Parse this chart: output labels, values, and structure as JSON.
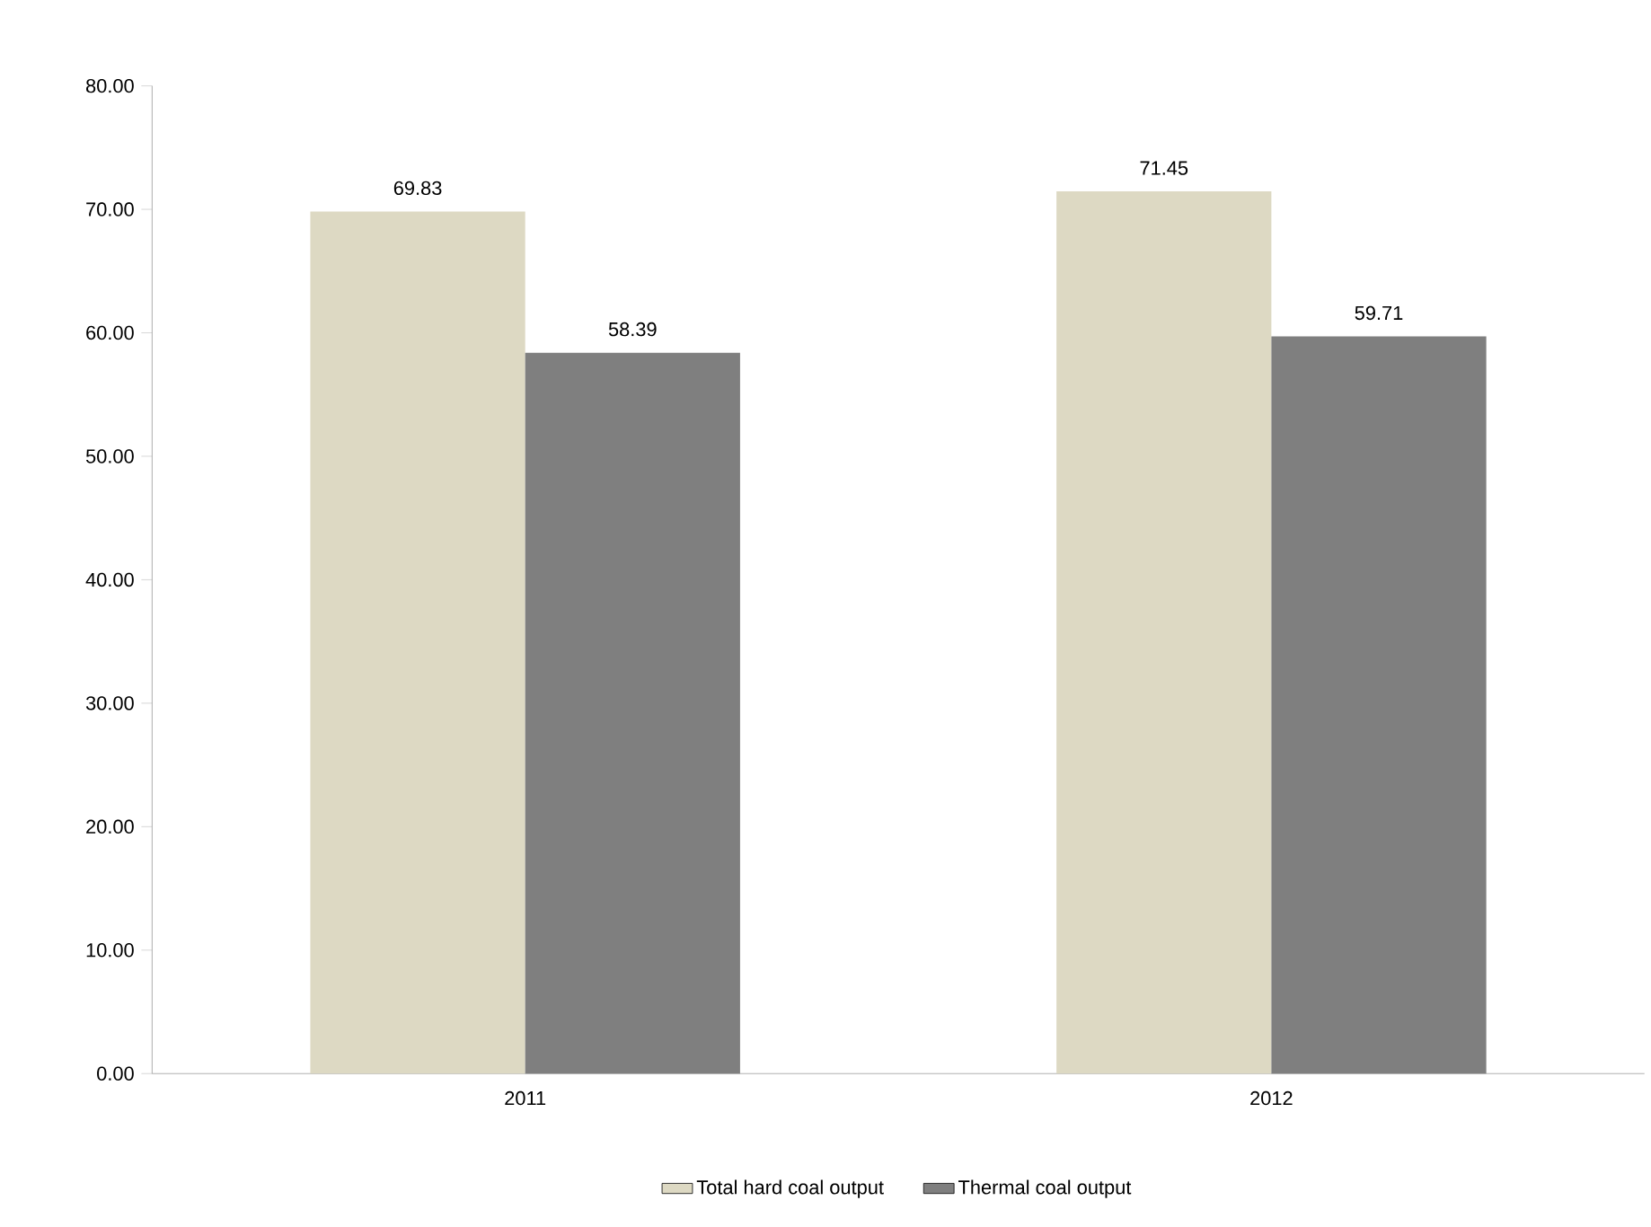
{
  "chart_data": {
    "type": "bar",
    "categories": [
      "2011",
      "2012"
    ],
    "series": [
      {
        "name": "Total hard coal output",
        "color": "#ddd9c3",
        "values": [
          69.83,
          71.45
        ]
      },
      {
        "name": "Thermal coal output",
        "color": "#7f7f7f",
        "values": [
          58.39,
          59.71
        ]
      }
    ],
    "ylim": [
      0,
      80
    ],
    "yticks": [
      {
        "value": 0,
        "label": "0.00"
      },
      {
        "value": 10,
        "label": "10.00"
      },
      {
        "value": 20,
        "label": "20.00"
      },
      {
        "value": 30,
        "label": "30.00"
      },
      {
        "value": 40,
        "label": "40.00"
      },
      {
        "value": 50,
        "label": "50.00"
      },
      {
        "value": 60,
        "label": "60.00"
      },
      {
        "value": 70,
        "label": "70.00"
      },
      {
        "value": 80,
        "label": "80.00"
      }
    ],
    "data_labels": true,
    "grid": false,
    "legend": "bottom"
  }
}
